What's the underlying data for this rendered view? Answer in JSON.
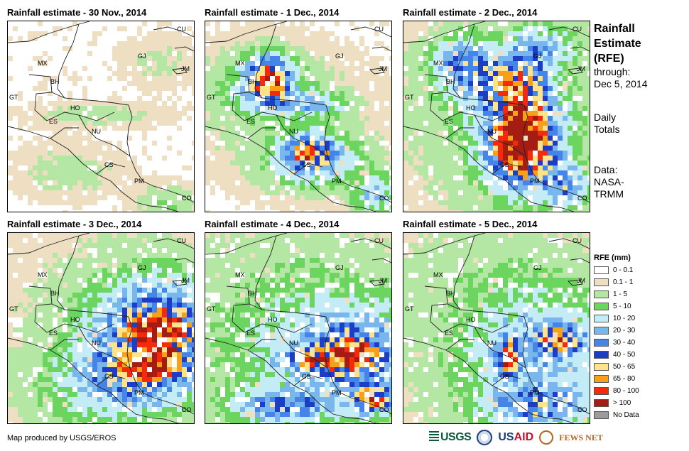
{
  "panels": [
    {
      "title": "Rainfall estimate - 30 Nov., 2014",
      "blobs": [
        [
          0.45,
          0.48,
          0.28,
          0.05,
          2.5
        ],
        [
          0.3,
          0.78,
          0.22,
          0.1,
          2.5
        ],
        [
          0.85,
          0.95,
          0.12,
          0.08,
          5
        ],
        [
          0.8,
          0.2,
          0.15,
          0.1,
          1.5
        ]
      ]
    },
    {
      "title": "Rainfall estimate - 1 Dec., 2014",
      "blobs": [
        [
          0.33,
          0.3,
          0.09,
          0.1,
          90
        ],
        [
          0.3,
          0.32,
          0.2,
          0.14,
          15
        ],
        [
          0.55,
          0.68,
          0.12,
          0.08,
          60
        ],
        [
          0.58,
          0.72,
          0.22,
          0.12,
          20
        ],
        [
          0.55,
          0.42,
          0.15,
          0.06,
          25
        ],
        [
          0.4,
          0.48,
          0.35,
          0.25,
          3
        ],
        [
          0.9,
          0.9,
          0.1,
          0.1,
          20
        ]
      ]
    },
    {
      "title": "Rainfall estimate - 2 Dec., 2014",
      "blobs": [
        [
          0.62,
          0.65,
          0.12,
          0.13,
          90
        ],
        [
          0.63,
          0.6,
          0.2,
          0.25,
          40
        ],
        [
          0.48,
          0.3,
          0.22,
          0.14,
          30
        ],
        [
          0.62,
          0.45,
          0.12,
          0.25,
          55
        ],
        [
          0.3,
          0.2,
          0.14,
          0.12,
          25
        ],
        [
          0.55,
          0.5,
          0.45,
          0.4,
          5
        ],
        [
          0.85,
          0.85,
          0.12,
          0.1,
          30
        ],
        [
          0.75,
          0.12,
          0.15,
          0.1,
          20
        ]
      ]
    },
    {
      "title": "Rainfall estimate - 3 Dec., 2014",
      "blobs": [
        [
          0.8,
          0.5,
          0.15,
          0.1,
          75
        ],
        [
          0.78,
          0.52,
          0.3,
          0.22,
          35
        ],
        [
          0.75,
          0.68,
          0.12,
          0.07,
          80
        ],
        [
          0.7,
          0.72,
          0.35,
          0.15,
          30
        ],
        [
          0.82,
          0.38,
          0.25,
          0.2,
          12
        ],
        [
          0.6,
          0.55,
          0.45,
          0.45,
          4
        ],
        [
          0.5,
          0.85,
          0.3,
          0.15,
          8
        ]
      ]
    },
    {
      "title": "Rainfall estimate - 4 Dec., 2014",
      "blobs": [
        [
          0.78,
          0.62,
          0.12,
          0.1,
          60
        ],
        [
          0.78,
          0.62,
          0.32,
          0.22,
          30
        ],
        [
          0.58,
          0.66,
          0.14,
          0.05,
          55
        ],
        [
          0.88,
          0.86,
          0.1,
          0.06,
          70
        ],
        [
          0.4,
          0.9,
          0.22,
          0.08,
          35
        ],
        [
          0.5,
          0.62,
          0.55,
          0.4,
          8
        ],
        [
          0.5,
          0.3,
          0.55,
          0.3,
          2.5
        ]
      ]
    },
    {
      "title": "Rainfall estimate - 5 Dec., 2014",
      "blobs": [
        [
          0.55,
          0.65,
          0.05,
          0.08,
          90
        ],
        [
          0.82,
          0.55,
          0.1,
          0.06,
          65
        ],
        [
          0.75,
          0.6,
          0.35,
          0.25,
          20
        ],
        [
          0.7,
          0.9,
          0.25,
          0.1,
          35
        ],
        [
          0.55,
          0.55,
          0.5,
          0.45,
          5
        ],
        [
          0.4,
          0.2,
          0.45,
          0.2,
          2
        ]
      ]
    }
  ],
  "countries": [
    "MX",
    "BH",
    "GT",
    "HO",
    "ES",
    "NU",
    "CS",
    "PM",
    "CO",
    "CU",
    "JM",
    "GJ"
  ],
  "side": {
    "title_line1": "Rainfall",
    "title_line2": "Estimate",
    "title_line3": "(RFE)",
    "through_label": "through:",
    "through_date": "Dec 5, 2014",
    "daily_line1": "Daily",
    "daily_line2": "Totals",
    "data_label": "Data:",
    "data_source1": "NASA-",
    "data_source2": "TRMM"
  },
  "legend": {
    "title": "RFE (mm)",
    "items": [
      {
        "label": "0 - 0.1",
        "color": "#ffffff"
      },
      {
        "label": "0.1 - 1",
        "color": "#eedfc2"
      },
      {
        "label": "1 - 5",
        "color": "#b4e6a4"
      },
      {
        "label": "5 - 10",
        "color": "#6bd55f"
      },
      {
        "label": "10 - 20",
        "color": "#c4ecf7"
      },
      {
        "label": "20 - 30",
        "color": "#7ab6ee"
      },
      {
        "label": "30 - 40",
        "color": "#4584e8"
      },
      {
        "label": "40 - 50",
        "color": "#1c3ec7"
      },
      {
        "label": "50 - 65",
        "color": "#fde38a"
      },
      {
        "label": "65 - 80",
        "color": "#f9a01b"
      },
      {
        "label": "80 - 100",
        "color": "#f52a0c"
      },
      {
        "label": "> 100",
        "color": "#a51c12"
      },
      {
        "label": "No Data",
        "color": "#9b9b9b"
      }
    ]
  },
  "credit": "Map produced by USGS/EROS",
  "logos": {
    "usgs": "USGS",
    "usaid_blue": "US",
    "usaid_red": "AID",
    "fews": "FEWS NET"
  }
}
